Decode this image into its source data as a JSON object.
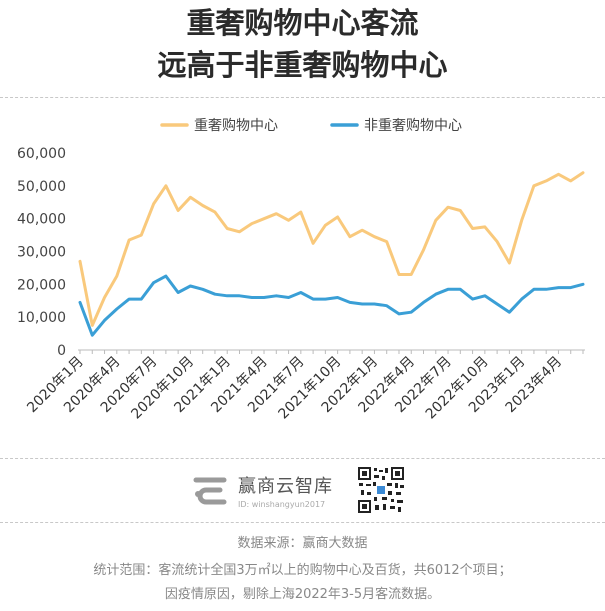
{
  "title_line1": "重奢购物中心客流",
  "title_line2": "远高于非重奢购物中心",
  "chart_data": {
    "type": "line",
    "title": "重奢购物中心客流远高于非重奢购物中心",
    "ylim": [
      0,
      60000
    ],
    "y_ticks": [
      "60,000",
      "50,000",
      "40,000",
      "30,000",
      "20,000",
      "10,000",
      "0"
    ],
    "x_tick_labels": [
      "2020年1月",
      "2020年4月",
      "2020年7月",
      "2020年10月",
      "2021年1月",
      "2021年4月",
      "2021年7月",
      "2021年10月",
      "2022年1月",
      "2022年4月",
      "2022年7月",
      "2022年10月",
      "2023年1月",
      "2023年4月"
    ],
    "legend_position": "top-center",
    "grid": false,
    "series": [
      {
        "name": "重奢购物中心",
        "color": "#f9c97c",
        "values": [
          27000,
          7500,
          16000,
          22500,
          33500,
          35000,
          44500,
          50000,
          42500,
          46500,
          44000,
          42000,
          37000,
          36000,
          38500,
          40000,
          41500,
          39500,
          42000,
          32500,
          38000,
          40500,
          34500,
          36500,
          34500,
          33000,
          23000,
          23000,
          30500,
          39500,
          43500,
          42500,
          37000,
          37500,
          33000,
          26500,
          39500,
          50000,
          51500,
          53500,
          51500,
          54000
        ]
      },
      {
        "name": "非重奢购物中心",
        "color": "#3a9fd6",
        "values": [
          14500,
          4500,
          9000,
          12500,
          15500,
          15500,
          20500,
          22500,
          17500,
          19500,
          18500,
          17000,
          16500,
          16500,
          16000,
          16000,
          16500,
          16000,
          17500,
          15500,
          15500,
          16000,
          14500,
          14000,
          14000,
          13500,
          11000,
          11500,
          14500,
          17000,
          18500,
          18500,
          15500,
          16500,
          14000,
          11500,
          15500,
          18500,
          18500,
          19000,
          19000,
          20000
        ]
      }
    ]
  },
  "brand": {
    "name": "赢商云智库",
    "id_text": "ID: winshangyun2017"
  },
  "footer": {
    "source": "数据来源：赢商大数据",
    "scope": "统计范围：客流统计全国3万㎡以上的购物中心及百货，共6012个项目；",
    "note": "因疫情原因，剔除上海2022年3-5月客流数据。"
  }
}
